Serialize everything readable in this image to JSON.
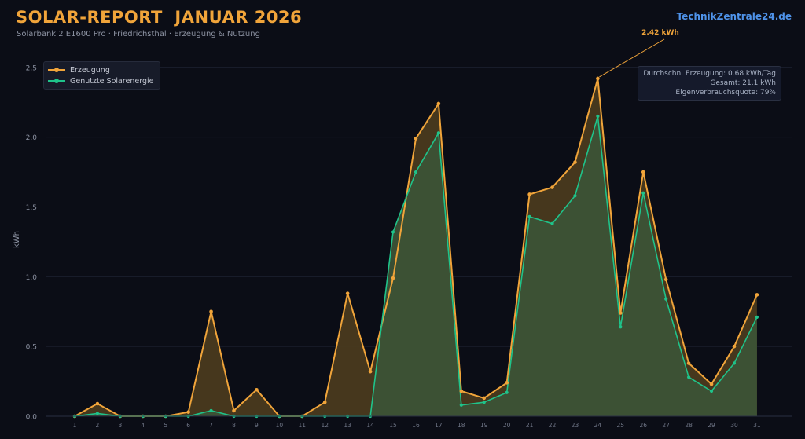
{
  "header": {
    "title": "SOLAR-REPORT  JANUAR 2026",
    "subtitle": "Solarbank 2 E1600 Pro  ·  Friedrichsthal · Erzeugung & Nutzung",
    "site": "TechnikZentrale24.de"
  },
  "stats": {
    "line1": "Durchschn. Erzeugung: 0.68 kWh/Tag",
    "line2": "Gesamt: 21.1 kWh",
    "line3": "Eigenverbrauchsquote: 79%"
  },
  "colors": {
    "erzeugung": "#f0a43a",
    "genutzt": "#1fc38a",
    "fill_erzeugung": "#4a3a1e",
    "fill_genutzt": "#3c5236"
  },
  "chart_data": {
    "type": "area",
    "title": "SOLAR-REPORT  JANUAR 2026",
    "xlabel": "",
    "ylabel": "kWh",
    "ylim": [
      0,
      2.6
    ],
    "yticks": [
      0.0,
      0.5,
      1.0,
      1.5,
      2.0,
      2.5
    ],
    "ytick_labels": [
      "0.0",
      "0.5",
      "1.0",
      "1.5",
      "2.0",
      "2.5"
    ],
    "grid": true,
    "legend_position": "top-left",
    "x": [
      1,
      2,
      3,
      4,
      5,
      6,
      7,
      8,
      9,
      10,
      11,
      12,
      13,
      14,
      15,
      16,
      17,
      18,
      19,
      20,
      21,
      22,
      23,
      24,
      25,
      26,
      27,
      28,
      29,
      30,
      31
    ],
    "x_labels": [
      "1",
      "2",
      "3",
      "4",
      "5",
      "6",
      "7",
      "8",
      "9",
      "10",
      "11",
      "12",
      "13",
      "14",
      "15",
      "16",
      "17",
      "18",
      "19",
      "20",
      "21",
      "22",
      "23",
      "24",
      "25",
      "26",
      "27",
      "28",
      "29",
      "30",
      "31"
    ],
    "series": [
      {
        "name": "Erzeugung",
        "values": [
          0.0,
          0.09,
          0.0,
          0.0,
          0.0,
          0.03,
          0.75,
          0.04,
          0.19,
          0.0,
          0.0,
          0.1,
          0.88,
          0.32,
          0.99,
          1.99,
          2.24,
          0.18,
          0.13,
          0.24,
          1.59,
          1.64,
          1.82,
          2.42,
          0.74,
          1.75,
          0.98,
          0.38,
          0.23,
          0.5,
          0.87
        ]
      },
      {
        "name": "Genutzte Solarenergie",
        "values": [
          0.0,
          0.02,
          0.0,
          0.0,
          0.0,
          0.0,
          0.04,
          0.0,
          0.0,
          0.0,
          0.0,
          0.0,
          0.0,
          0.0,
          1.32,
          1.75,
          2.03,
          0.08,
          0.1,
          0.17,
          1.43,
          1.38,
          1.58,
          2.15,
          0.64,
          1.6,
          0.84,
          0.28,
          0.18,
          0.38,
          0.71
        ]
      }
    ],
    "annotation": {
      "text": "2.42 kWh",
      "x": 24,
      "y": 2.42
    }
  }
}
